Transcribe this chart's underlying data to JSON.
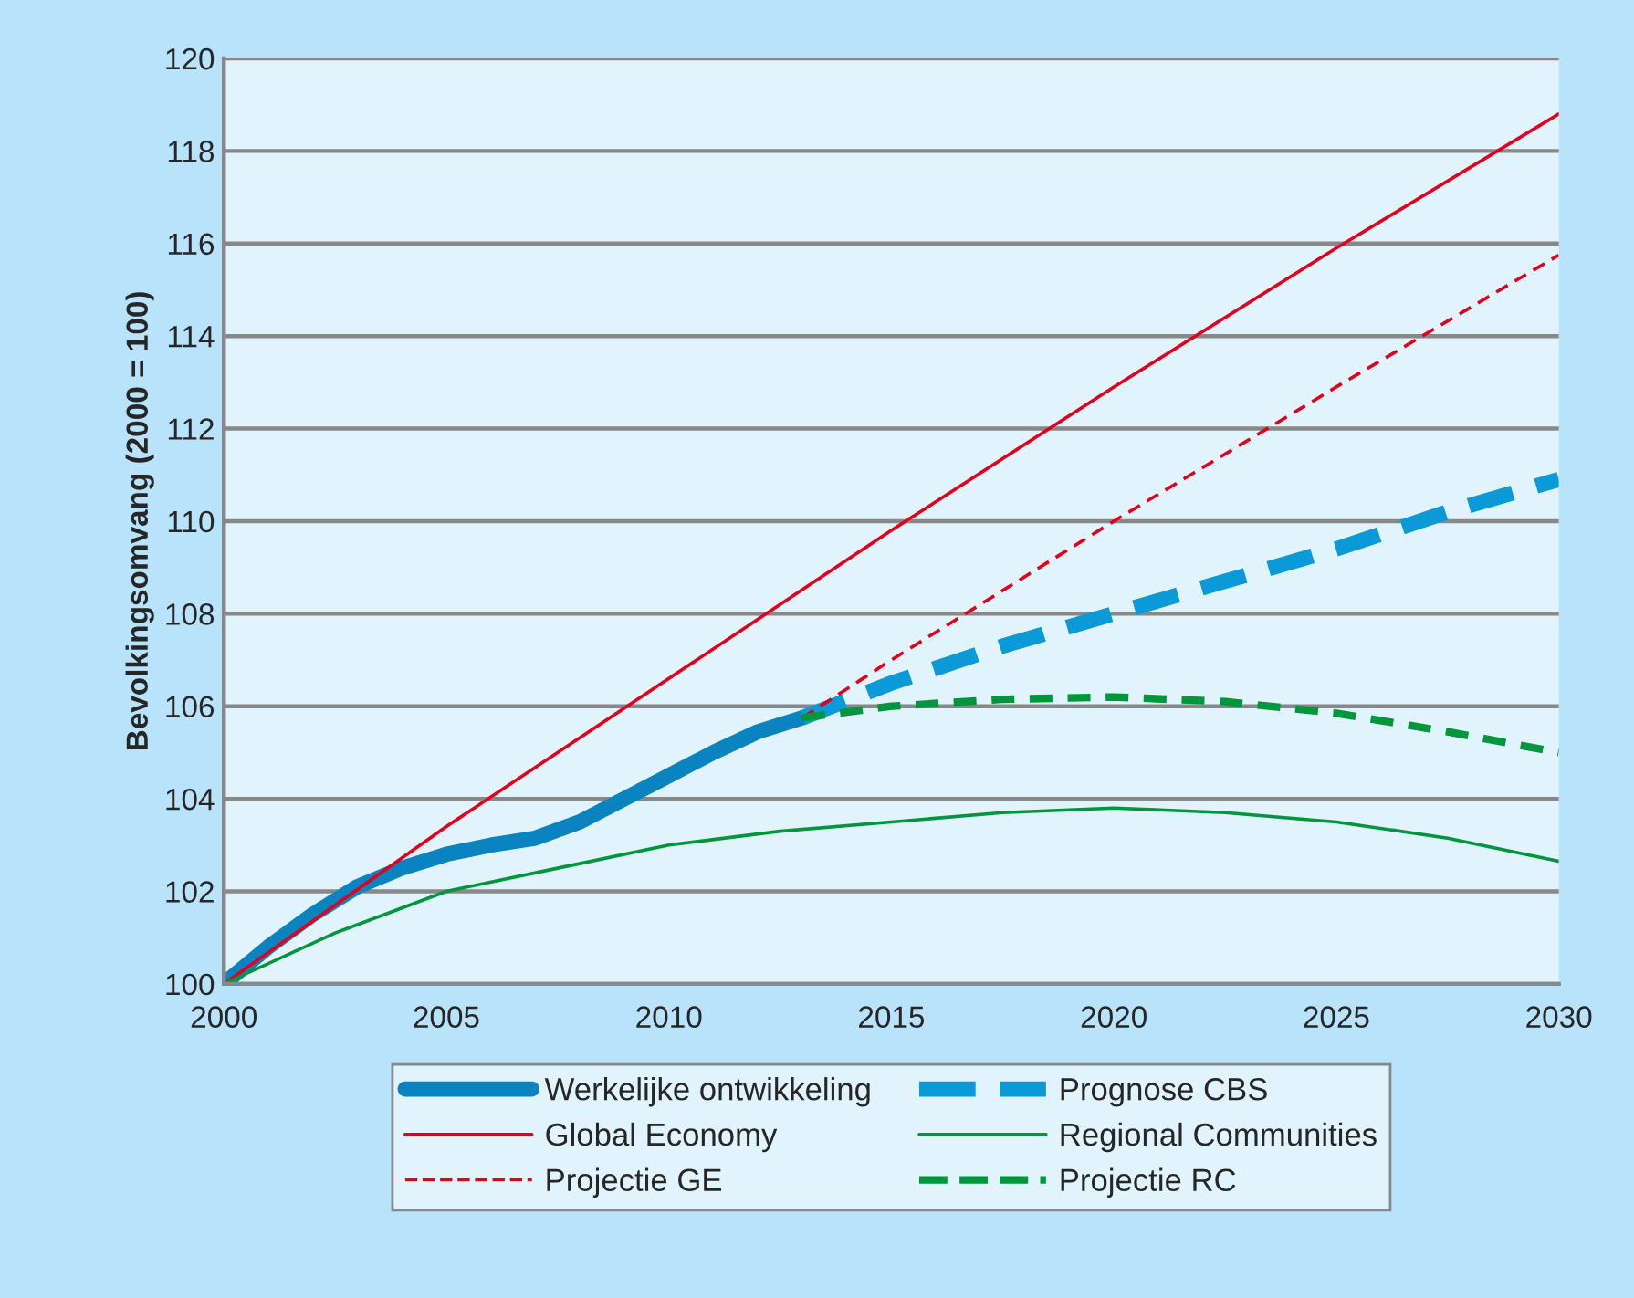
{
  "chart_data": {
    "type": "line",
    "ylabel": "Bevolkingsomvang (2000 = 100)",
    "xlim": [
      2000,
      2030
    ],
    "xticks": [
      2000,
      2005,
      2010,
      2015,
      2020,
      2025,
      2030
    ],
    "ylim": [
      100,
      120
    ],
    "yticks": [
      100,
      102,
      104,
      106,
      108,
      110,
      112,
      114,
      116,
      118,
      120
    ],
    "grid": "y",
    "legend": "bottom",
    "marker": "none",
    "series": [
      {
        "name": "Werkelijke ontwikkeling",
        "color": "#0a84c1",
        "line_style": "solid",
        "x": [
          2000,
          2001,
          2002,
          2003,
          2004,
          2005,
          2006,
          2007,
          2008,
          2009,
          2010,
          2011,
          2012,
          2013
        ],
        "values": [
          100,
          100.8,
          101.5,
          102.1,
          102.5,
          102.8,
          103.0,
          103.15,
          103.5,
          104.0,
          104.5,
          105.0,
          105.45,
          105.75
        ]
      },
      {
        "name": "Prognose CBS",
        "color": "#0a9ad8",
        "line_style": "dashed",
        "x": [
          2013,
          2015,
          2017.5,
          2020,
          2022.5,
          2025,
          2027.5,
          2030
        ],
        "values": [
          105.75,
          106.5,
          107.3,
          108.0,
          108.7,
          109.4,
          110.2,
          110.9
        ]
      },
      {
        "name": "Global Economy",
        "color": "#e3001b",
        "line_style": "solid",
        "x": [
          2000,
          2005,
          2010,
          2015,
          2020,
          2025,
          2030
        ],
        "values": [
          100,
          103.4,
          106.6,
          109.8,
          112.9,
          115.9,
          118.8
        ]
      },
      {
        "name": "Regional Communities",
        "color": "#00963c",
        "line_style": "solid",
        "x": [
          2000,
          2002.5,
          2005,
          2007.5,
          2010,
          2012.5,
          2015,
          2017.5,
          2020,
          2022.5,
          2025,
          2027.5,
          2030
        ],
        "values": [
          100,
          101.1,
          102.0,
          102.5,
          103.0,
          103.3,
          103.5,
          103.7,
          103.8,
          103.7,
          103.5,
          103.15,
          102.65
        ]
      },
      {
        "name": "Projectie GE",
        "color": "#e3001b",
        "line_style": "dashed",
        "x": [
          2013,
          2015,
          2020,
          2025,
          2030
        ],
        "values": [
          105.75,
          107.0,
          110.0,
          112.9,
          115.75
        ]
      },
      {
        "name": "Projectie RC",
        "color": "#00963c",
        "line_style": "dashed",
        "x": [
          2013,
          2015,
          2017.5,
          2020,
          2022.5,
          2025,
          2027.5,
          2030
        ],
        "values": [
          105.75,
          106.0,
          106.15,
          106.2,
          106.1,
          105.85,
          105.45,
          105.0
        ]
      }
    ]
  }
}
